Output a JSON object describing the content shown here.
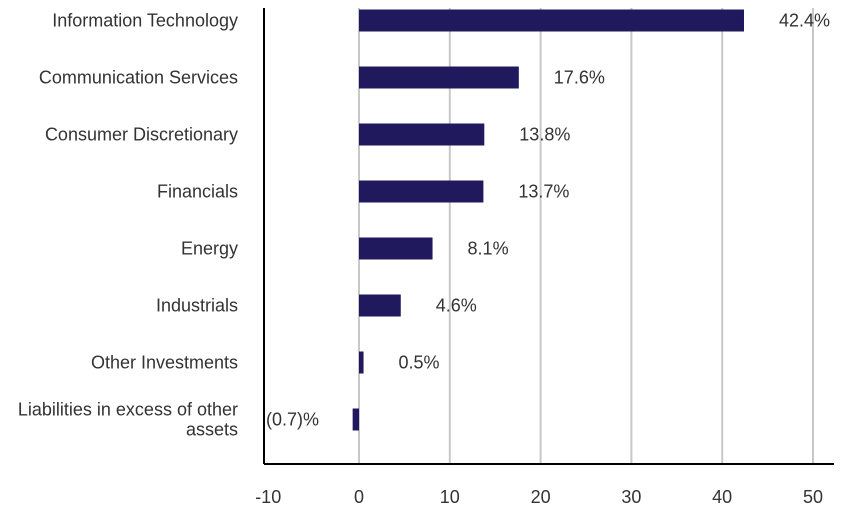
{
  "chart_data": {
    "type": "bar",
    "orientation": "horizontal",
    "categories": [
      [
        "Information Technology"
      ],
      [
        "Communication Services"
      ],
      [
        "Consumer Discretionary"
      ],
      [
        "Financials"
      ],
      [
        "Energy"
      ],
      [
        "Industrials"
      ],
      [
        "Other Investments"
      ],
      [
        "Liabilities in excess of other",
        "assets"
      ]
    ],
    "values": [
      42.4,
      17.6,
      13.8,
      13.7,
      8.1,
      4.6,
      0.5,
      -0.7
    ],
    "data_labels": [
      "42.4%",
      "17.6%",
      "13.8%",
      "13.7%",
      "8.1%",
      "4.6%",
      "0.5%",
      "(0.7)%"
    ],
    "xlim": [
      -10,
      50
    ],
    "xticks": [
      -10,
      0,
      10,
      20,
      30,
      40,
      50
    ],
    "grid": true,
    "bar_color": "#21195e",
    "grid_color": "#c8c8c8",
    "axis_color": "#000000"
  }
}
